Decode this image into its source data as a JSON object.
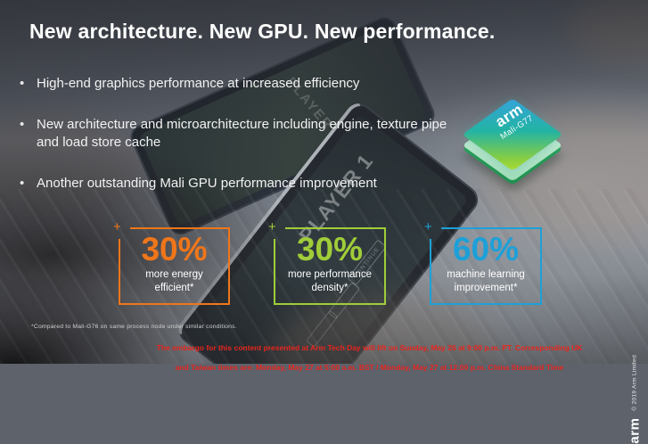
{
  "slide": {
    "title": "New architecture. New GPU. New performance.",
    "bullets": [
      "High-end graphics performance at increased efficiency",
      "New architecture and microarchitecture including engine, texture pipe and load store cache",
      "Another outstanding Mali GPU performance improvement"
    ],
    "footnote": "*Compared to Mali-G76 on same process node under similar conditions.",
    "corner_marker": "+",
    "embargo": {
      "line1": "The embargo for this content presented at Arm Tech Day will lift on Sunday, May 26 at 9:00 p.m. PT.  Corresponding UK",
      "line2": "and Taiwan times are: Monday, May 27 at 5:00 a.m. BST / Monday, May 27 at 12:00 p.m. China Standard Time",
      "color": "#e8251d"
    }
  },
  "chip": {
    "brand": "arm",
    "model": "Mali-G77",
    "gradient_start": "#35a3da",
    "gradient_end": "#aadd35"
  },
  "stats": [
    {
      "value": "30%",
      "label": "more energy efficient*",
      "color": "#f0761a"
    },
    {
      "value": "30%",
      "label": "more performance density*",
      "color": "#a0cd39"
    },
    {
      "value": "60%",
      "label": "machine learning improvement*",
      "color": "#1da0d8"
    }
  ],
  "rightbar": {
    "brand": "arm",
    "copyright": "© 2019 Arm Limited"
  },
  "background": {
    "phone_top_label": "PLAYER 2",
    "tablet_label": "PLAYER 1",
    "menu_label": "CONTINUE"
  }
}
